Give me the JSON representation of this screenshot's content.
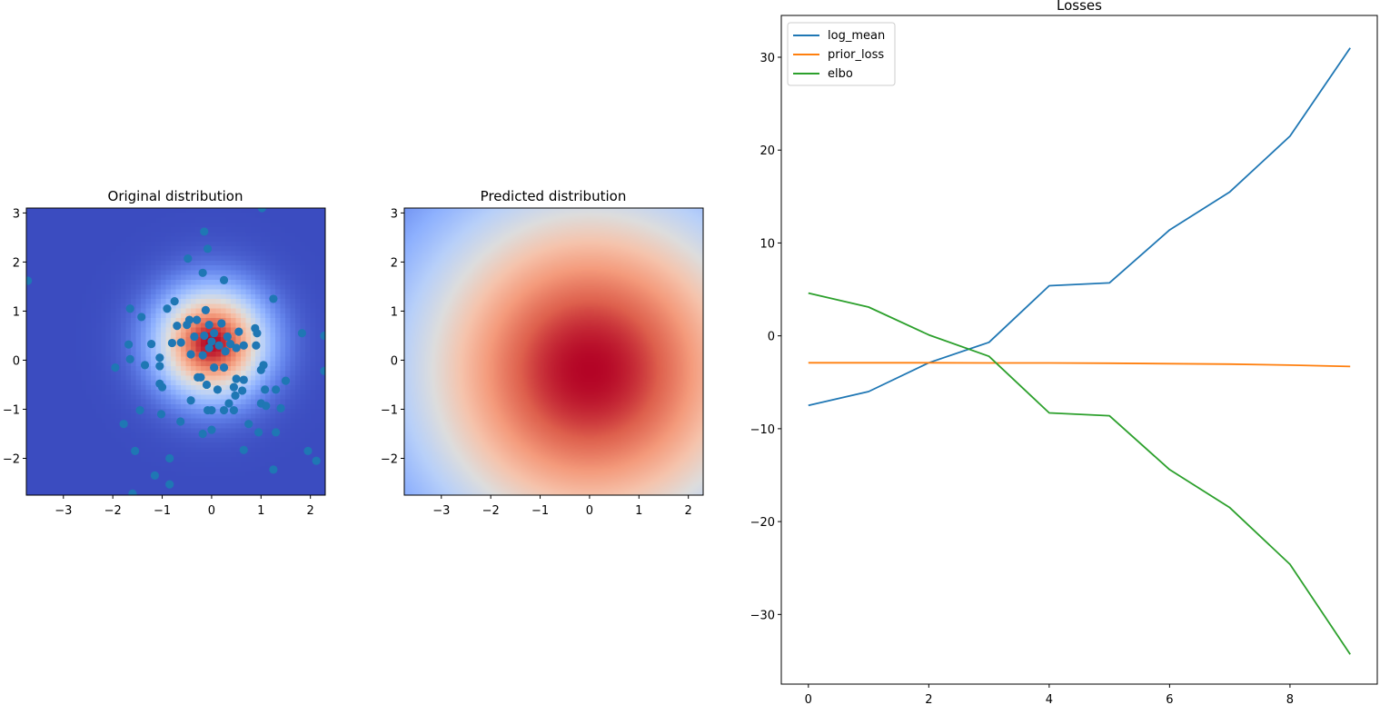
{
  "chart_data": [
    {
      "type": "heatmap",
      "title": "Original distribution",
      "xlim": [
        -3.75,
        2.3
      ],
      "ylim": [
        -2.75,
        3.1
      ],
      "xticks": [
        -3,
        -2,
        -1,
        0,
        1,
        2
      ],
      "yticks": [
        -2,
        -1,
        0,
        1,
        2,
        3
      ],
      "colormap": "coolwarm",
      "density": {
        "center": [
          0.0,
          0.35
        ],
        "sigma": 0.75
      },
      "scatter_color": "#1f77b4",
      "scatter_points": [
        [
          -0.15,
          2.62
        ],
        [
          -0.08,
          2.27
        ],
        [
          -0.48,
          2.07
        ],
        [
          -0.18,
          1.78
        ],
        [
          0.25,
          1.63
        ],
        [
          -1.65,
          1.05
        ],
        [
          -0.9,
          1.05
        ],
        [
          -0.75,
          1.2
        ],
        [
          -0.12,
          1.02
        ],
        [
          1.25,
          1.25
        ],
        [
          -0.45,
          0.82
        ],
        [
          -0.3,
          0.82
        ],
        [
          -0.05,
          0.72
        ],
        [
          0.2,
          0.75
        ],
        [
          0.88,
          0.65
        ],
        [
          -1.42,
          0.88
        ],
        [
          -0.7,
          0.7
        ],
        [
          -0.5,
          0.72
        ],
        [
          0.05,
          0.55
        ],
        [
          0.55,
          0.58
        ],
        [
          0.92,
          0.55
        ],
        [
          1.83,
          0.55
        ],
        [
          -0.35,
          0.48
        ],
        [
          -0.15,
          0.5
        ],
        [
          0.32,
          0.48
        ],
        [
          -1.68,
          0.32
        ],
        [
          -1.22,
          0.33
        ],
        [
          -0.8,
          0.35
        ],
        [
          -0.62,
          0.36
        ],
        [
          0.0,
          0.38
        ],
        [
          0.15,
          0.3
        ],
        [
          0.38,
          0.33
        ],
        [
          0.65,
          0.3
        ],
        [
          0.9,
          0.3
        ],
        [
          -0.05,
          0.25
        ],
        [
          0.5,
          0.25
        ],
        [
          -0.42,
          0.12
        ],
        [
          -0.18,
          0.1
        ],
        [
          0.28,
          0.18
        ],
        [
          -1.05,
          0.05
        ],
        [
          -1.65,
          0.02
        ],
        [
          -1.35,
          -0.1
        ],
        [
          -1.05,
          -0.12
        ],
        [
          0.05,
          -0.15
        ],
        [
          0.25,
          -0.15
        ],
        [
          1.05,
          -0.1
        ],
        [
          1.0,
          -0.2
        ],
        [
          -1.95,
          -0.15
        ],
        [
          0.5,
          -0.38
        ],
        [
          0.65,
          -0.4
        ],
        [
          -0.28,
          -0.35
        ],
        [
          -0.22,
          -0.35
        ],
        [
          1.5,
          -0.42
        ],
        [
          -1.05,
          -0.48
        ],
        [
          -1.0,
          -0.55
        ],
        [
          -0.1,
          -0.5
        ],
        [
          0.12,
          -0.6
        ],
        [
          0.45,
          -0.55
        ],
        [
          0.62,
          -0.62
        ],
        [
          1.08,
          -0.6
        ],
        [
          1.3,
          -0.6
        ],
        [
          0.48,
          -0.72
        ],
        [
          -0.42,
          -0.82
        ],
        [
          0.35,
          -0.88
        ],
        [
          1.0,
          -0.88
        ],
        [
          1.1,
          -0.93
        ],
        [
          1.4,
          -0.98
        ],
        [
          -1.45,
          -1.02
        ],
        [
          -0.08,
          -1.02
        ],
        [
          0.0,
          -1.02
        ],
        [
          0.25,
          -1.02
        ],
        [
          0.45,
          -1.02
        ],
        [
          -1.02,
          -1.1
        ],
        [
          -0.63,
          -1.25
        ],
        [
          0.75,
          -1.3
        ],
        [
          -1.78,
          -1.3
        ],
        [
          0.0,
          -1.42
        ],
        [
          -0.18,
          -1.5
        ],
        [
          0.95,
          -1.47
        ],
        [
          1.3,
          -1.47
        ],
        [
          0.65,
          -1.83
        ],
        [
          -1.55,
          -1.85
        ],
        [
          1.95,
          -1.85
        ],
        [
          -0.85,
          -2.0
        ],
        [
          2.12,
          -2.05
        ],
        [
          1.25,
          -2.23
        ],
        [
          -1.15,
          -2.35
        ],
        [
          -0.85,
          -2.53
        ],
        [
          -1.6,
          -2.72
        ],
        [
          -3.72,
          1.62
        ],
        [
          1.02,
          3.1
        ],
        [
          2.28,
          0.5
        ],
        [
          2.28,
          -0.22
        ]
      ]
    },
    {
      "type": "heatmap",
      "title": "Predicted distribution",
      "xlim": [
        -3.75,
        2.3
      ],
      "ylim": [
        -2.75,
        3.1
      ],
      "xticks": [
        -3,
        -2,
        -1,
        0,
        1,
        2
      ],
      "yticks": [
        -2,
        -1,
        0,
        1,
        2,
        3
      ],
      "colormap": "coolwarm",
      "density": {
        "center": [
          0.0,
          -0.2
        ],
        "sigma": 2.7
      }
    },
    {
      "type": "line",
      "title": "Losses",
      "x": [
        0,
        1,
        2,
        3,
        4,
        5,
        6,
        7,
        8,
        9
      ],
      "xlim": [
        -0.45,
        9.45
      ],
      "ylim": [
        -37.5,
        34.5
      ],
      "xticks": [
        0,
        2,
        4,
        6,
        8
      ],
      "yticks": [
        -30,
        -20,
        -10,
        0,
        10,
        20,
        30
      ],
      "legend_position": "upper-left",
      "series": [
        {
          "name": "log_mean",
          "color": "#1f77b4",
          "values": [
            -7.5,
            -6.0,
            -2.9,
            -0.7,
            5.4,
            5.7,
            11.4,
            15.5,
            21.5,
            31.0
          ]
        },
        {
          "name": "prior_loss",
          "color": "#ff7f0e",
          "values": [
            -2.9,
            -2.9,
            -2.9,
            -2.92,
            -2.92,
            -2.95,
            -3.0,
            -3.05,
            -3.15,
            -3.3
          ]
        },
        {
          "name": "elbo",
          "color": "#2ca02c",
          "values": [
            4.6,
            3.1,
            0.1,
            -2.2,
            -8.3,
            -8.6,
            -14.4,
            -18.5,
            -24.6,
            -34.3
          ]
        }
      ]
    }
  ]
}
